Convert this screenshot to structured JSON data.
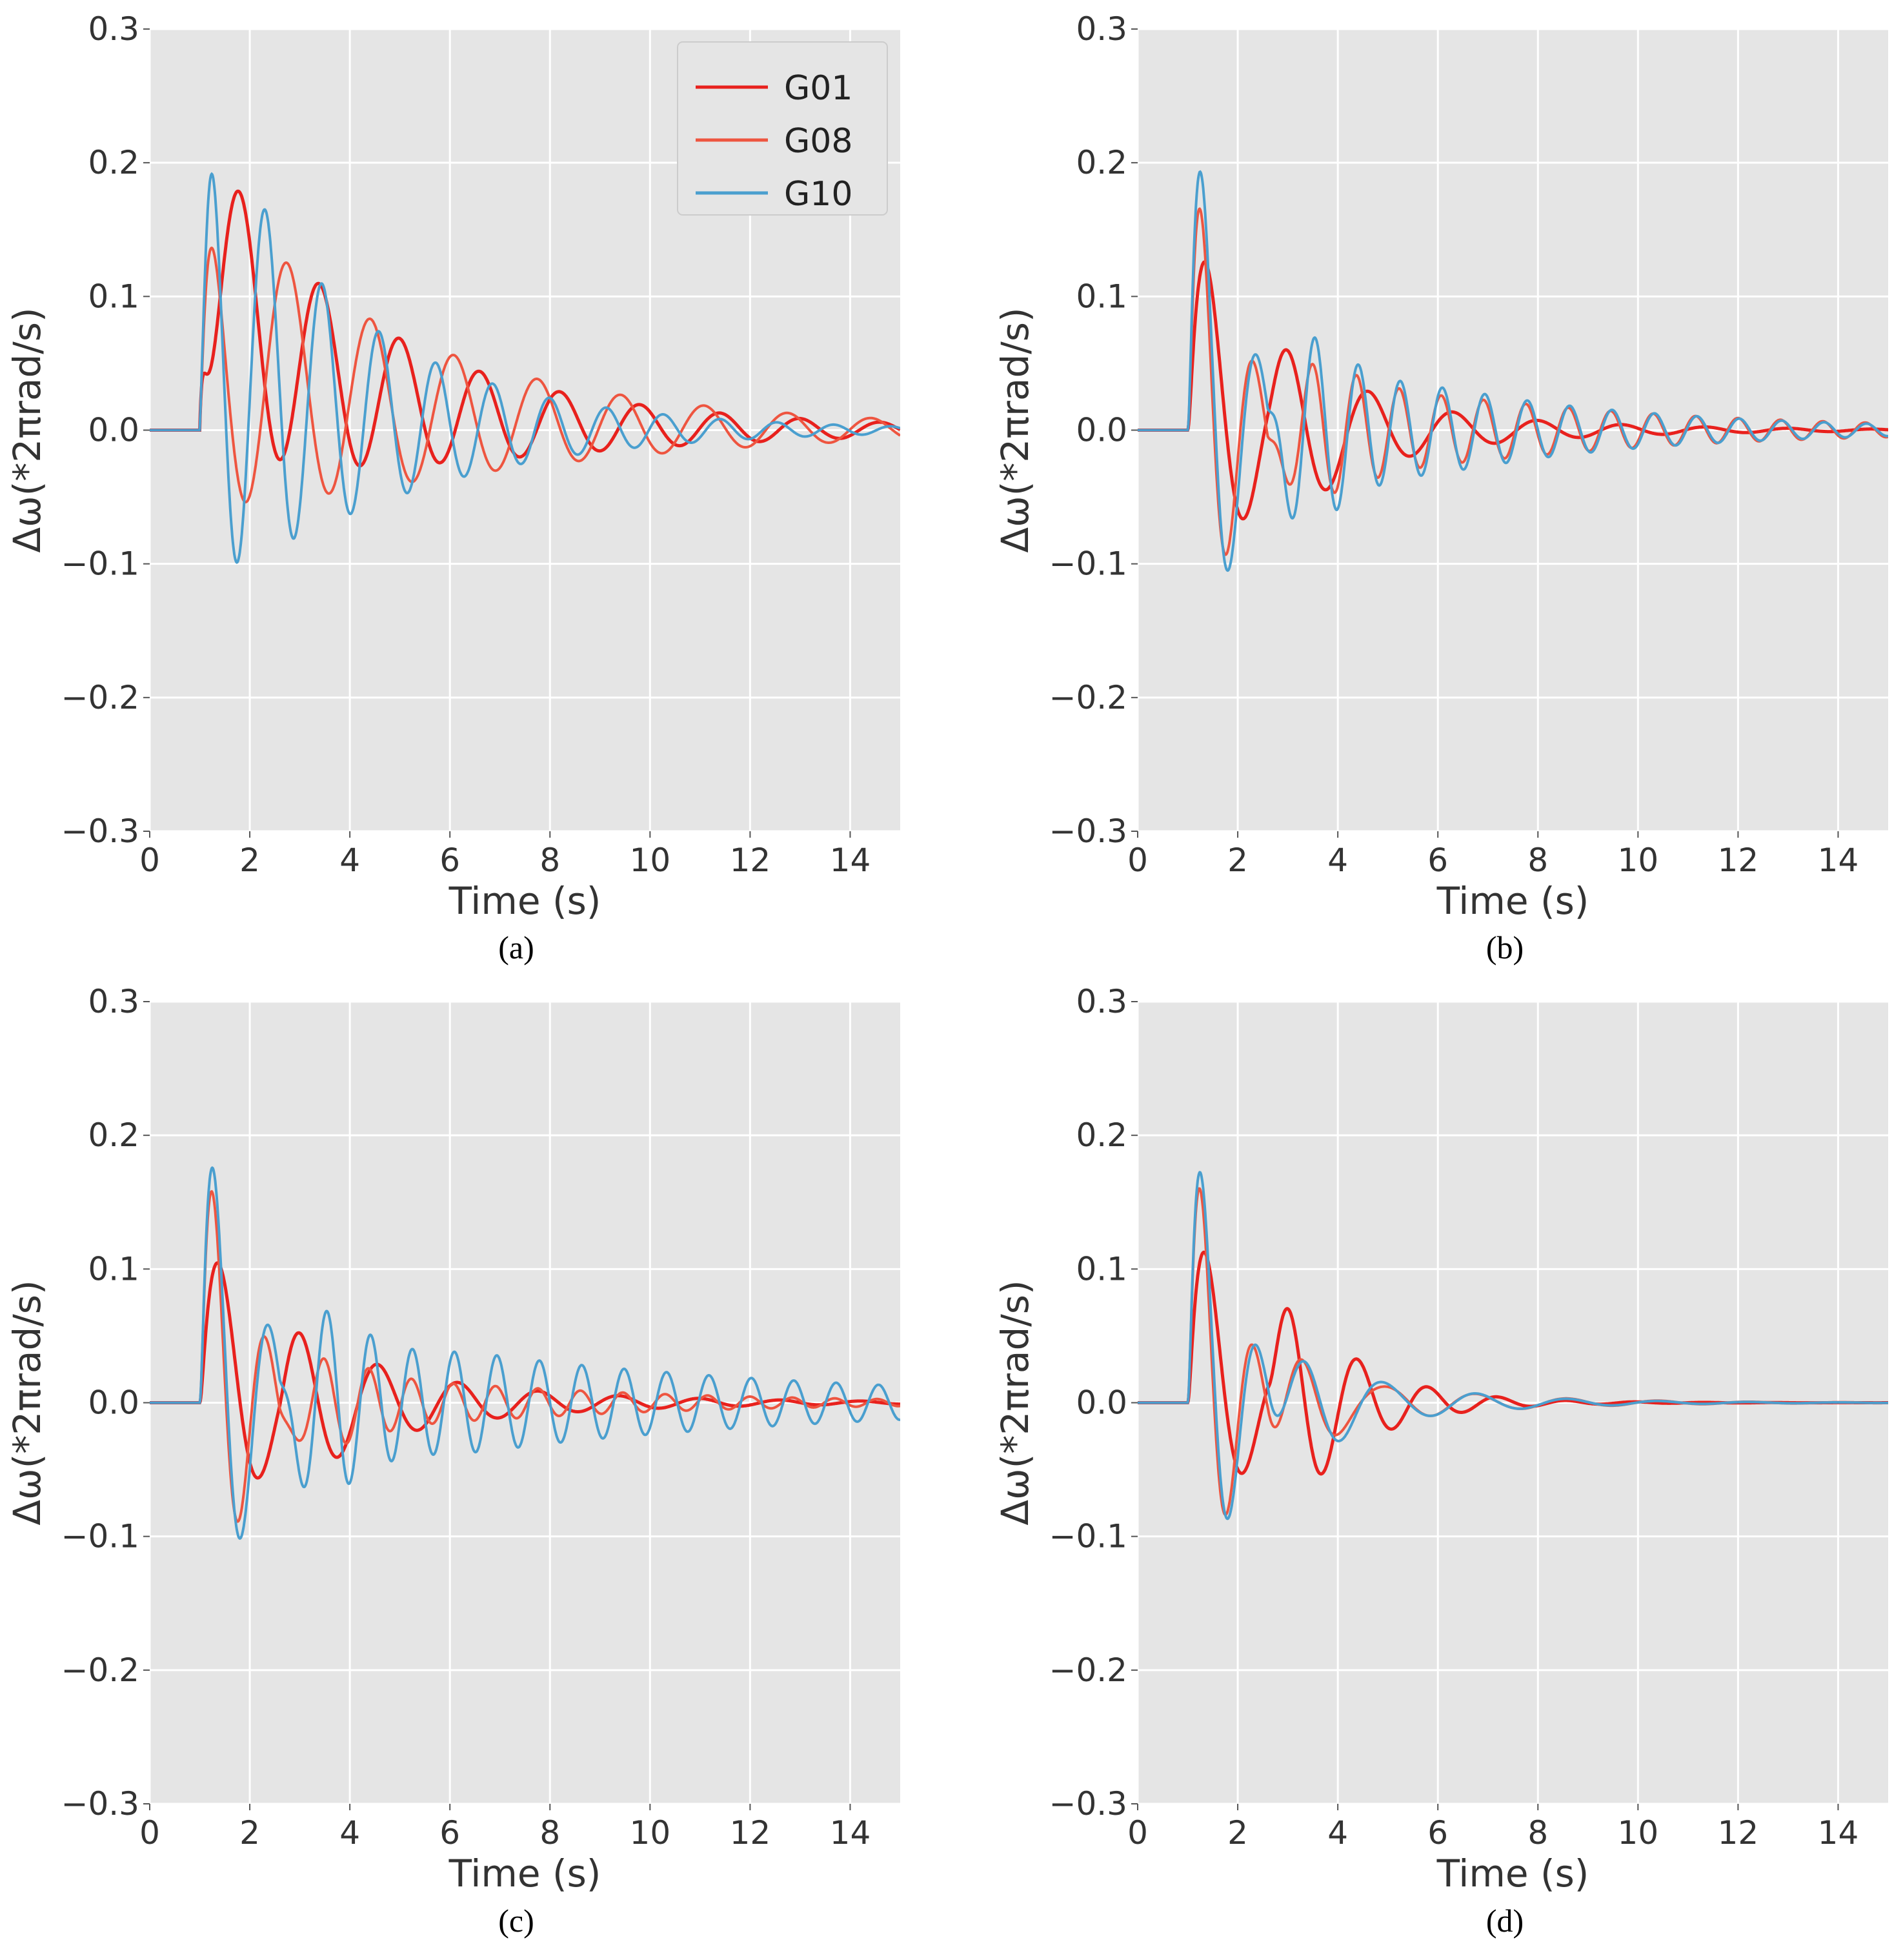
{
  "chart_data": [
    {
      "type": "line",
      "caption": "(a)",
      "xlabel": "Time (s)",
      "ylabel": "Δω(*2πrad/s)",
      "xlim": [
        0,
        15
      ],
      "ylim": [
        -0.3,
        0.3
      ],
      "xticks": [
        0,
        2,
        4,
        6,
        8,
        10,
        12,
        14
      ],
      "yticks": [
        -0.3,
        -0.2,
        -0.1,
        0.0,
        0.1,
        0.2,
        0.3
      ],
      "xtick_labels": [
        "0",
        "2",
        "4",
        "6",
        "8",
        "10",
        "12",
        "14"
      ],
      "ytick_labels": [
        "−0.3",
        "−0.2",
        "−0.1",
        "0.0",
        "0.1",
        "0.2",
        "0.3"
      ],
      "grid": true,
      "legend": {
        "position": "top-right",
        "entries": [
          "G01",
          "G08",
          "G10"
        ]
      },
      "series": [
        {
          "name": "G01",
          "color": "#e8211d",
          "params": {
            "A": 0.115,
            "f": 0.625,
            "tau": 4.5,
            "C": 0.115,
            "Cd": 5.0,
            "phase": -1.5708
          }
        },
        {
          "name": "G08",
          "color": "#ee5540",
          "params": {
            "A": 0.125,
            "f": 0.6,
            "tau": 5.0,
            "C": 0.07,
            "Cd": 6.0,
            "phase": 1.25
          }
        },
        {
          "name": "G10",
          "color": "#4a9fcf",
          "params": {
            "A": 0.19,
            "f": 0.88,
            "tau": 3.3,
            "C": 0.08,
            "Cd": 3.5,
            "phase": 0.6
          }
        }
      ]
    },
    {
      "type": "line",
      "caption": "(b)",
      "xlabel": "Time (s)",
      "ylabel": "Δω(*2πrad/s)",
      "xlim": [
        0,
        15
      ],
      "ylim": [
        -0.3,
        0.3
      ],
      "xticks": [
        0,
        2,
        4,
        6,
        8,
        10,
        12,
        14
      ],
      "yticks": [
        -0.3,
        -0.2,
        -0.1,
        0.0,
        0.1,
        0.2,
        0.3
      ],
      "xtick_labels": [
        "0",
        "2",
        "4",
        "6",
        "8",
        "10",
        "12",
        "14"
      ],
      "ytick_labels": [
        "−0.3",
        "−0.2",
        "−0.1",
        "0.0",
        "0.1",
        "0.2",
        "0.3"
      ],
      "grid": true,
      "series": [
        {
          "name": "G01",
          "color": "#e8211d",
          "params": {
            "A": 0.17,
            "f": 0.65,
            "tau": 1.2,
            "B": 0.045,
            "g": 0.6,
            "tau2": 3.0,
            "phase2": 0.0
          }
        },
        {
          "name": "G08",
          "color": "#ee5540",
          "params": {
            "A": 0.22,
            "f": 0.95,
            "tau": 0.9,
            "B": 0.05,
            "g": 1.18,
            "tau2": 5.5,
            "phase2": 1.0
          }
        },
        {
          "name": "G10",
          "color": "#4a9fcf",
          "params": {
            "A": 0.26,
            "f": 0.9,
            "tau": 0.9,
            "B": 0.07,
            "g": 1.18,
            "tau2": 4.5,
            "phase2": 0.8
          }
        }
      ]
    },
    {
      "type": "line",
      "caption": "(c)",
      "xlabel": "Time (s)",
      "ylabel": "Δω(*2πrad/s)",
      "xlim": [
        0,
        15
      ],
      "ylim": [
        -0.3,
        0.3
      ],
      "xticks": [
        0,
        2,
        4,
        6,
        8,
        10,
        12,
        14
      ],
      "yticks": [
        -0.3,
        -0.2,
        -0.1,
        0.0,
        0.1,
        0.2,
        0.3
      ],
      "xtick_labels": [
        "0",
        "2",
        "4",
        "6",
        "8",
        "10",
        "12",
        "14"
      ],
      "ytick_labels": [
        "−0.3",
        "−0.2",
        "−0.1",
        "0.0",
        "0.1",
        "0.2",
        "0.3"
      ],
      "grid": true,
      "series": [
        {
          "name": "G01",
          "color": "#e8211d",
          "params": {
            "A": 0.14,
            "f": 0.62,
            "tau": 1.3,
            "B": 0.035,
            "g": 0.62,
            "tau2": 3.5,
            "phase2": 0.3
          }
        },
        {
          "name": "G08",
          "color": "#ee5540",
          "params": {
            "A": 0.21,
            "f": 0.95,
            "tau": 0.9,
            "B": 0.03,
            "g": 1.18,
            "tau2": 5.0,
            "phase2": 1.0
          }
        },
        {
          "name": "G10",
          "color": "#4a9fcf",
          "params": {
            "A": 0.23,
            "f": 0.9,
            "tau": 1.0,
            "B": 0.06,
            "g": 1.18,
            "tau2": 8.0,
            "phase2": 0.8
          }
        }
      ]
    },
    {
      "type": "line",
      "caption": "(d)",
      "xlabel": "Time (s)",
      "ylabel": "Δω(*2πrad/s)",
      "xlim": [
        0,
        15
      ],
      "ylim": [
        -0.3,
        0.3
      ],
      "xticks": [
        0,
        2,
        4,
        6,
        8,
        10,
        12,
        14
      ],
      "yticks": [
        -0.3,
        -0.2,
        -0.1,
        0.0,
        0.1,
        0.2,
        0.3
      ],
      "xtick_labels": [
        "0",
        "2",
        "4",
        "6",
        "8",
        "10",
        "12",
        "14"
      ],
      "ytick_labels": [
        "−0.3",
        "−0.2",
        "−0.1",
        "0.0",
        "0.1",
        "0.2",
        "0.3"
      ],
      "grid": true,
      "series": [
        {
          "name": "G01",
          "color": "#e8211d",
          "params": {
            "A": 0.16,
            "f": 0.66,
            "tau": 1.0,
            "B": 0.09,
            "g": 0.72,
            "tau2": 1.5,
            "phase2": -0.3
          }
        },
        {
          "name": "G08",
          "color": "#ee5540",
          "params": {
            "A": 0.22,
            "f": 0.95,
            "tau": 0.8,
            "B": 0.035,
            "g": 0.55,
            "tau2": 2.5,
            "phase2": -0.3
          }
        },
        {
          "name": "G10",
          "color": "#4a9fcf",
          "params": {
            "A": 0.24,
            "f": 0.9,
            "tau": 0.8,
            "B": 0.045,
            "g": 0.55,
            "tau2": 2.2,
            "phase2": -0.3
          }
        }
      ]
    }
  ]
}
